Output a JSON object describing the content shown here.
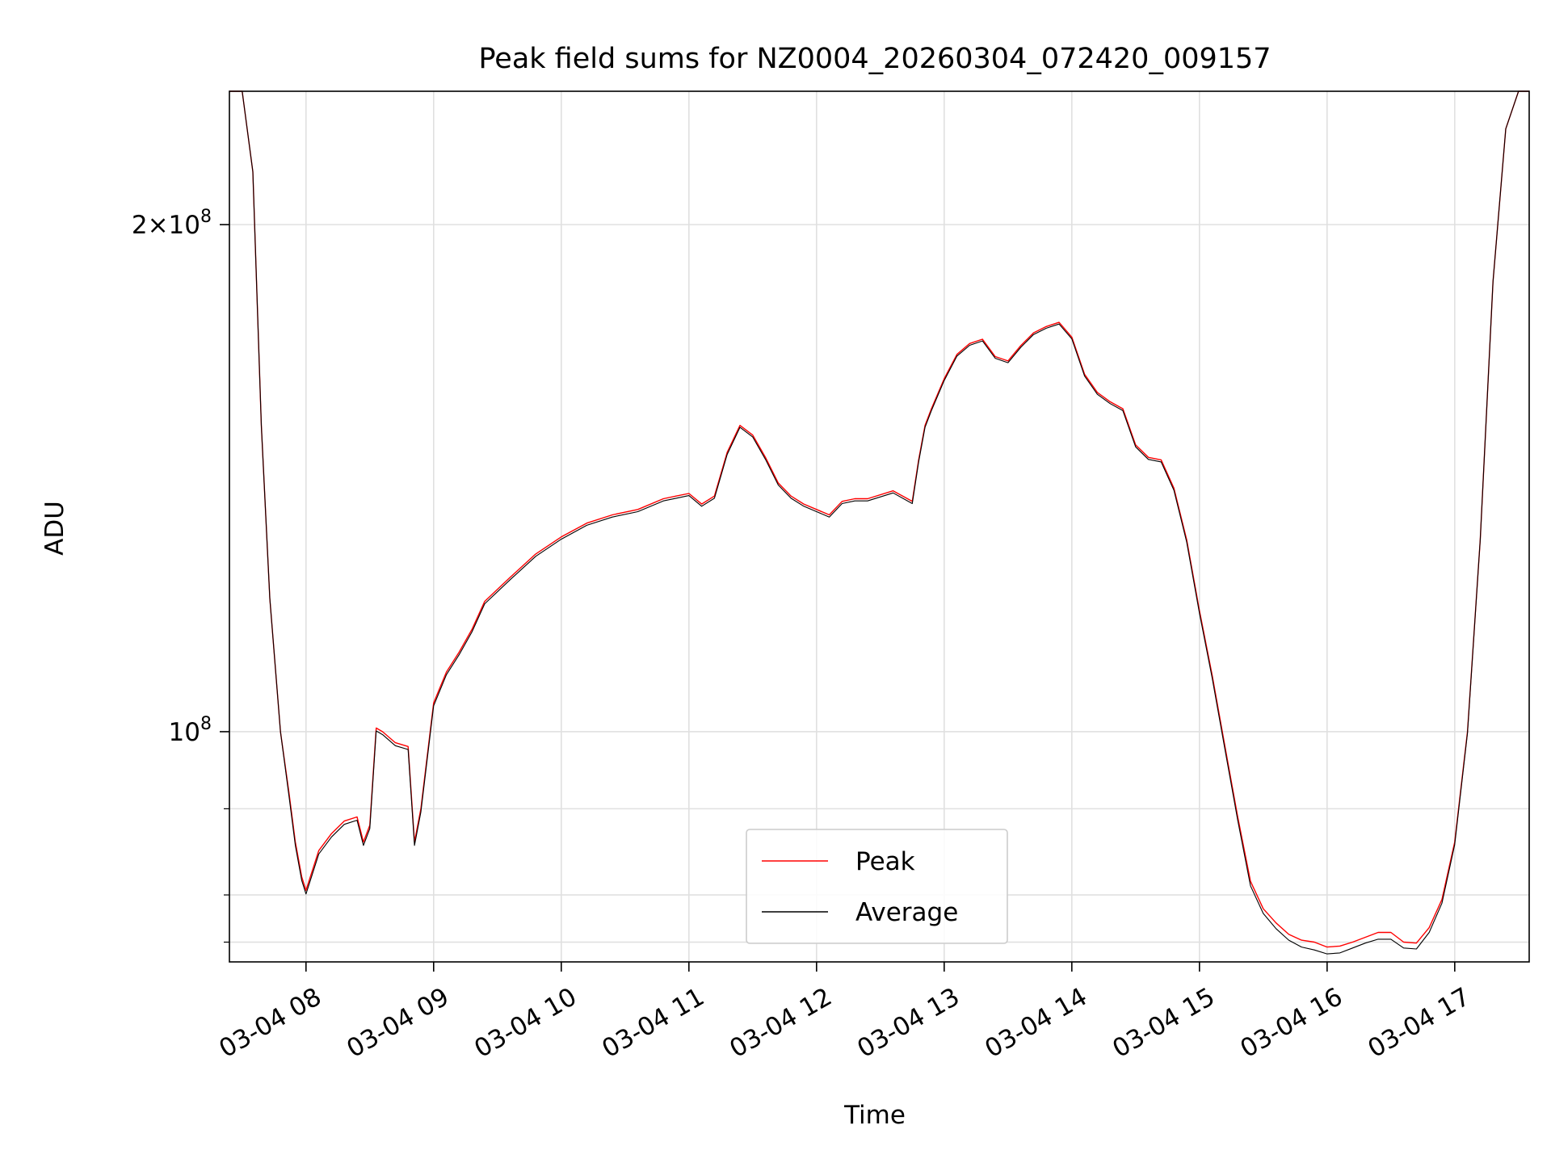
{
  "chart_data": {
    "type": "line",
    "title": "Peak field sums for NZ0004_20260304_072420_009157",
    "xlabel": "Time",
    "ylabel": "ADU",
    "yscale": "log",
    "ylim": [
      73000000,
      240000000
    ],
    "xlim": [
      "2026-03-04 07:24",
      "2026-03-04 17:35"
    ],
    "grid": true,
    "legend": {
      "placement": "lower center"
    },
    "x_ticks": [
      {
        "label": "03-04 08",
        "value": "2026-03-04 08:00"
      },
      {
        "label": "03-04 09",
        "value": "2026-03-04 09:00"
      },
      {
        "label": "03-04 10",
        "value": "2026-03-04 10:00"
      },
      {
        "label": "03-04 11",
        "value": "2026-03-04 11:00"
      },
      {
        "label": "03-04 12",
        "value": "2026-03-04 12:00"
      },
      {
        "label": "03-04 13",
        "value": "2026-03-04 13:00"
      },
      {
        "label": "03-04 14",
        "value": "2026-03-04 14:00"
      },
      {
        "label": "03-04 15",
        "value": "2026-03-04 15:00"
      },
      {
        "label": "03-04 16",
        "value": "2026-03-04 16:00"
      },
      {
        "label": "03-04 17",
        "value": "2026-03-04 17:00"
      }
    ],
    "y_major_ticks": [
      {
        "label_base": "10",
        "label_exp": "8",
        "label_mant": "",
        "value": 100000000
      },
      {
        "label_base": "10",
        "label_exp": "8",
        "label_mant": "2",
        "value": 200000000
      }
    ],
    "y_minor_ticks": [
      75000000,
      80000000,
      90000000,
      300000000
    ],
    "x": [
      "2026-03-04 07:24",
      "2026-03-04 07:30",
      "2026-03-04 07:35",
      "2026-03-04 07:39",
      "2026-03-04 07:43",
      "2026-03-04 07:48",
      "2026-03-04 07:52",
      "2026-03-04 07:55",
      "2026-03-04 07:58",
      "2026-03-04 08:00",
      "2026-03-04 08:06",
      "2026-03-04 08:12",
      "2026-03-04 08:18",
      "2026-03-04 08:24",
      "2026-03-04 08:27",
      "2026-03-04 08:30",
      "2026-03-04 08:33",
      "2026-03-04 08:36",
      "2026-03-04 08:42",
      "2026-03-04 08:48",
      "2026-03-04 08:51",
      "2026-03-04 08:54",
      "2026-03-04 09:00",
      "2026-03-04 09:06",
      "2026-03-04 09:12",
      "2026-03-04 09:18",
      "2026-03-04 09:24",
      "2026-03-04 09:36",
      "2026-03-04 09:48",
      "2026-03-04 10:00",
      "2026-03-04 10:12",
      "2026-03-04 10:24",
      "2026-03-04 10:36",
      "2026-03-04 10:48",
      "2026-03-04 10:54",
      "2026-03-04 11:00",
      "2026-03-04 11:06",
      "2026-03-04 11:12",
      "2026-03-04 11:18",
      "2026-03-04 11:24",
      "2026-03-04 11:30",
      "2026-03-04 11:36",
      "2026-03-04 11:42",
      "2026-03-04 11:48",
      "2026-03-04 11:54",
      "2026-03-04 12:00",
      "2026-03-04 12:06",
      "2026-03-04 12:12",
      "2026-03-04 12:18",
      "2026-03-04 12:24",
      "2026-03-04 12:36",
      "2026-03-04 12:45",
      "2026-03-04 12:48",
      "2026-03-04 12:51",
      "2026-03-04 12:54",
      "2026-03-04 13:00",
      "2026-03-04 13:06",
      "2026-03-04 13:12",
      "2026-03-04 13:18",
      "2026-03-04 13:24",
      "2026-03-04 13:30",
      "2026-03-04 13:36",
      "2026-03-04 13:42",
      "2026-03-04 13:48",
      "2026-03-04 13:54",
      "2026-03-04 14:00",
      "2026-03-04 14:06",
      "2026-03-04 14:12",
      "2026-03-04 14:18",
      "2026-03-04 14:24",
      "2026-03-04 14:30",
      "2026-03-04 14:36",
      "2026-03-04 14:42",
      "2026-03-04 14:48",
      "2026-03-04 14:54",
      "2026-03-04 15:00",
      "2026-03-04 15:06",
      "2026-03-04 15:12",
      "2026-03-04 15:18",
      "2026-03-04 15:24",
      "2026-03-04 15:30",
      "2026-03-04 15:36",
      "2026-03-04 15:42",
      "2026-03-04 15:48",
      "2026-03-04 15:54",
      "2026-03-04 16:00",
      "2026-03-04 16:06",
      "2026-03-04 16:12",
      "2026-03-04 16:18",
      "2026-03-04 16:24",
      "2026-03-04 16:30",
      "2026-03-04 16:36",
      "2026-03-04 16:42",
      "2026-03-04 16:48",
      "2026-03-04 16:54",
      "2026-03-04 17:00",
      "2026-03-04 17:06",
      "2026-03-04 17:12",
      "2026-03-04 17:18",
      "2026-03-04 17:24",
      "2026-03-04 17:30",
      "2026-03-04 17:35"
    ],
    "series": [
      {
        "name": "Peak",
        "color": "#ff0000",
        "values": [
          240000000,
          240000000,
          215000000,
          152000000,
          120000000,
          100000000,
          92000000,
          86000000,
          82000000,
          80500000,
          85000000,
          87000000,
          88500000,
          89000000,
          86000000,
          88000000,
          100500000,
          100000000,
          98500000,
          98000000,
          86000000,
          90000000,
          104000000,
          108500000,
          111500000,
          115000000,
          119500000,
          123500000,
          127500000,
          130500000,
          133000000,
          134500000,
          135500000,
          137500000,
          138000000,
          138500000,
          136500000,
          138000000,
          146500000,
          152000000,
          150000000,
          145500000,
          140500000,
          138000000,
          136500000,
          135500000,
          134500000,
          137000000,
          137500000,
          137500000,
          139000000,
          137000000,
          145000000,
          152000000,
          155500000,
          162000000,
          167500000,
          170000000,
          171000000,
          167000000,
          166000000,
          169500000,
          172500000,
          174000000,
          175000000,
          171500000,
          163000000,
          159000000,
          157000000,
          155500000,
          148000000,
          145500000,
          145000000,
          139500000,
          130000000,
          118000000,
          108000000,
          98000000,
          89000000,
          81500000,
          78500000,
          77000000,
          75800000,
          75200000,
          75000000,
          74500000,
          74600000,
          75000000,
          75500000,
          76000000,
          76000000,
          75000000,
          74900000,
          76500000,
          79500000,
          86000000,
          100000000,
          130000000,
          185000000,
          228000000,
          240000000,
          240000000
        ],
        "stroke_width": 1.4
      },
      {
        "name": "Average",
        "color": "#000000",
        "values": [
          240000000,
          240000000,
          215000000,
          152000000,
          120000000,
          100000000,
          91600000,
          85600000,
          81600000,
          80100000,
          84600000,
          86600000,
          88100000,
          88600000,
          85600000,
          87600000,
          100100000,
          99600000,
          98100000,
          97600000,
          85600000,
          89600000,
          103600000,
          108100000,
          111100000,
          114600000,
          119100000,
          123100000,
          127100000,
          130100000,
          132600000,
          134100000,
          135100000,
          137100000,
          137600000,
          138100000,
          136100000,
          137600000,
          146100000,
          151600000,
          149600000,
          145100000,
          140100000,
          137600000,
          136100000,
          135100000,
          134100000,
          136600000,
          137100000,
          137100000,
          138600000,
          136600000,
          144600000,
          151600000,
          155100000,
          161600000,
          167100000,
          169600000,
          170600000,
          166600000,
          165600000,
          169100000,
          172100000,
          173600000,
          174600000,
          171100000,
          162600000,
          158600000,
          156600000,
          155100000,
          147600000,
          145100000,
          144600000,
          139100000,
          129600000,
          117600000,
          107600000,
          97600000,
          88600000,
          81000000,
          78000000,
          76400000,
          75200000,
          74500000,
          74200000,
          73800000,
          73900000,
          74400000,
          74900000,
          75300000,
          75300000,
          74400000,
          74300000,
          76000000,
          79100000,
          85700000,
          99800000,
          130000000,
          185000000,
          228000000,
          240000000,
          240000000
        ],
        "stroke_width": 1.1
      }
    ]
  }
}
